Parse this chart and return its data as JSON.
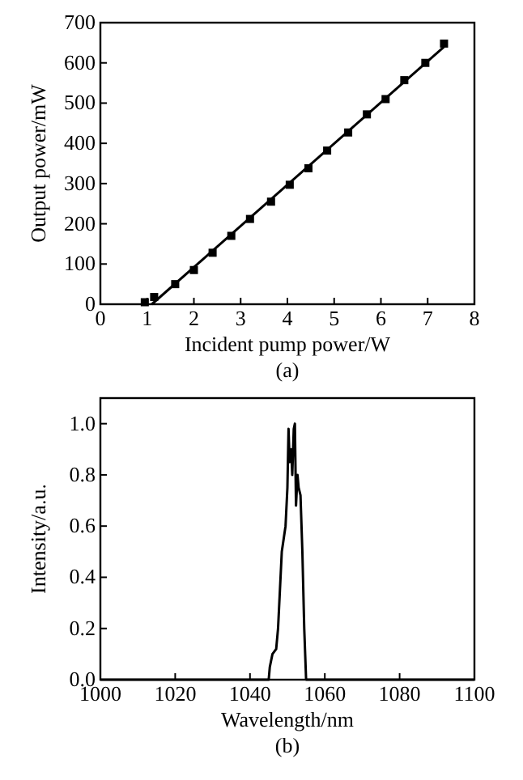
{
  "chart_data": [
    {
      "type": "scatter",
      "xlabel": "Incident pump power/W",
      "ylabel": "Output power/mW",
      "annotations": [
        "(a)"
      ],
      "xlim": [
        0,
        8
      ],
      "ylim": [
        0,
        700
      ],
      "xticks": [
        0,
        1,
        2,
        3,
        4,
        5,
        6,
        7,
        8
      ],
      "yticks": [
        0,
        100,
        200,
        300,
        400,
        500,
        600,
        700
      ],
      "grid": false,
      "series": [
        {
          "color": "#000000",
          "marker": "square",
          "x": [
            0.95,
            1.15,
            1.6,
            2.0,
            2.4,
            2.8,
            3.2,
            3.65,
            4.05,
            4.45,
            4.85,
            5.3,
            5.7,
            6.1,
            6.5,
            6.95,
            7.35
          ],
          "values": [
            5,
            18,
            50,
            85,
            128,
            170,
            212,
            255,
            297,
            338,
            382,
            427,
            472,
            510,
            557,
            600,
            648
          ]
        },
        {
          "type": "line",
          "color": "#000000",
          "marker": "none",
          "line_style": "solid",
          "x": [
            1.1,
            7.35
          ],
          "values": [
            0,
            640
          ]
        }
      ]
    },
    {
      "type": "line",
      "xlabel": "Wavelength/nm",
      "ylabel": "Intensity/a.u.",
      "annotations": [
        "(b)"
      ],
      "xlim": [
        1000,
        1100
      ],
      "ylim": [
        0,
        1.1
      ],
      "xticks": [
        1000,
        1020,
        1040,
        1060,
        1080,
        1100
      ],
      "yticks": [
        {
          "value": 0,
          "label": "0.0"
        },
        0.2,
        0.4,
        0.6,
        0.8,
        {
          "value": 1,
          "label": "1.0"
        }
      ],
      "grid": false,
      "marker": "none",
      "line_style": "solid",
      "series": [
        {
          "color": "#000000",
          "x": [
            1000,
            1045,
            1045.3,
            1046,
            1047,
            1047.5,
            1048,
            1048.5,
            1049,
            1049.5,
            1050,
            1050.3,
            1050.6,
            1051,
            1051.3,
            1051.7,
            1052,
            1052.3,
            1052.7,
            1053,
            1053.5,
            1054,
            1054.5,
            1055,
            1100
          ],
          "values": [
            0,
            0,
            0.05,
            0.1,
            0.12,
            0.2,
            0.35,
            0.5,
            0.55,
            0.6,
            0.75,
            0.98,
            0.85,
            0.9,
            0.8,
            0.98,
            1.0,
            0.68,
            0.8,
            0.75,
            0.72,
            0.5,
            0.2,
            0,
            0
          ]
        }
      ]
    }
  ]
}
